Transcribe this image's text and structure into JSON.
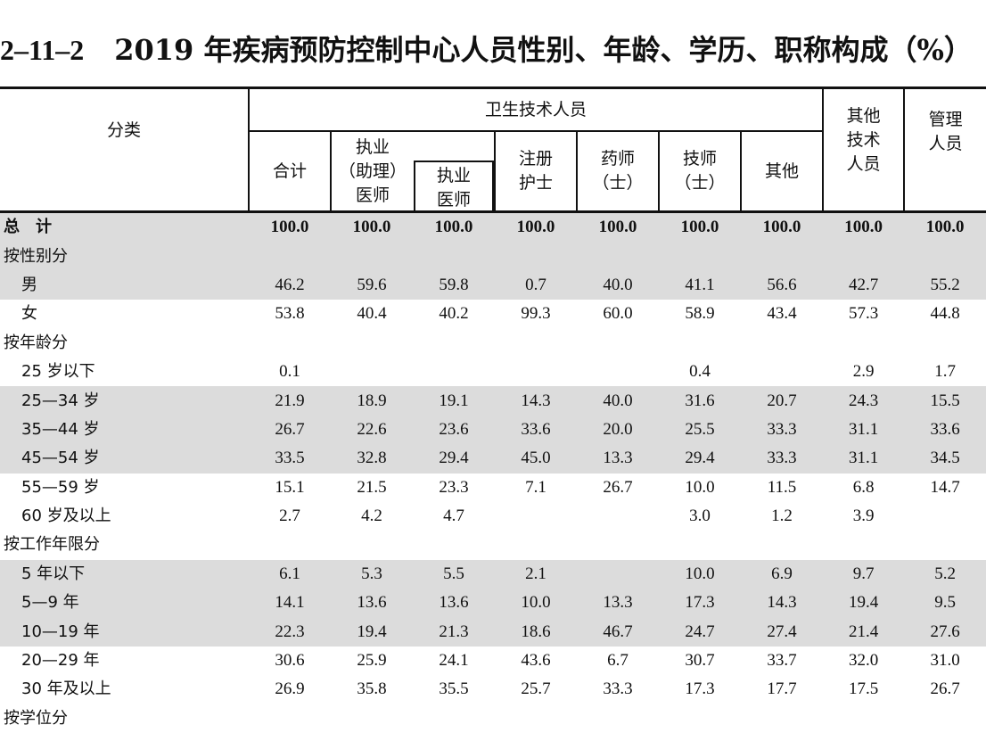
{
  "title": {
    "number": "2–11–2",
    "text": "2019 年疾病预防控制中心人员性别、年龄、学历、职称构成（%）"
  },
  "header": {
    "category": "分类",
    "health_tech": "卫生技术人员",
    "total": "合计",
    "licensed_assistant_l1": "执业",
    "licensed_assistant_l2": "（助理）",
    "licensed_assistant_l3": "医师",
    "licensed_l1": "执业",
    "licensed_l2": "医师",
    "nurse_l1": "注册",
    "nurse_l2": "护士",
    "pharmacist_l1": "药师",
    "pharmacist_l2": "（士）",
    "technician_l1": "技师",
    "technician_l2": "（士）",
    "other": "其他",
    "other_tech_l1": "其他",
    "other_tech_l2": "技术",
    "other_tech_l3": "人员",
    "management_l1": "管理",
    "management_l2": "人员"
  },
  "rows": [
    {
      "label": "总　计",
      "values": [
        "100.0",
        "100.0",
        "100.0",
        "100.0",
        "100.0",
        "100.0",
        "100.0",
        "100.0",
        "100.0"
      ]
    },
    {
      "label": "按性别分",
      "values": [
        "",
        "",
        "",
        "",
        "",
        "",
        "",
        "",
        ""
      ]
    },
    {
      "label": "男",
      "values": [
        "46.2",
        "59.6",
        "59.8",
        "0.7",
        "40.0",
        "41.1",
        "56.6",
        "42.7",
        "55.2"
      ]
    },
    {
      "label": "女",
      "values": [
        "53.8",
        "40.4",
        "40.2",
        "99.3",
        "60.0",
        "58.9",
        "43.4",
        "57.3",
        "44.8"
      ]
    },
    {
      "label": "按年龄分",
      "values": [
        "",
        "",
        "",
        "",
        "",
        "",
        "",
        "",
        ""
      ]
    },
    {
      "label": "25 岁以下",
      "values": [
        "0.1",
        "",
        "",
        "",
        "",
        "0.4",
        "",
        "2.9",
        "1.7"
      ]
    },
    {
      "label": "25—34 岁",
      "values": [
        "21.9",
        "18.9",
        "19.1",
        "14.3",
        "40.0",
        "31.6",
        "20.7",
        "24.3",
        "15.5"
      ]
    },
    {
      "label": "35—44 岁",
      "values": [
        "26.7",
        "22.6",
        "23.6",
        "33.6",
        "20.0",
        "25.5",
        "33.3",
        "31.1",
        "33.6"
      ]
    },
    {
      "label": "45—54 岁",
      "values": [
        "33.5",
        "32.8",
        "29.4",
        "45.0",
        "13.3",
        "29.4",
        "33.3",
        "31.1",
        "34.5"
      ]
    },
    {
      "label": "55—59 岁",
      "values": [
        "15.1",
        "21.5",
        "23.3",
        "7.1",
        "26.7",
        "10.0",
        "11.5",
        "6.8",
        "14.7"
      ]
    },
    {
      "label": "60 岁及以上",
      "values": [
        "2.7",
        "4.2",
        "4.7",
        "",
        "",
        "3.0",
        "1.2",
        "3.9",
        ""
      ]
    },
    {
      "label": "按工作年限分",
      "values": [
        "",
        "",
        "",
        "",
        "",
        "",
        "",
        "",
        ""
      ]
    },
    {
      "label": "5 年以下",
      "values": [
        "6.1",
        "5.3",
        "5.5",
        "2.1",
        "",
        "10.0",
        "6.9",
        "9.7",
        "5.2"
      ]
    },
    {
      "label": "5—9 年",
      "values": [
        "14.1",
        "13.6",
        "13.6",
        "10.0",
        "13.3",
        "17.3",
        "14.3",
        "19.4",
        "9.5"
      ]
    },
    {
      "label": "10—19 年",
      "values": [
        "22.3",
        "19.4",
        "21.3",
        "18.6",
        "46.7",
        "24.7",
        "27.4",
        "21.4",
        "27.6"
      ]
    },
    {
      "label": "20—29 年",
      "values": [
        "30.6",
        "25.9",
        "24.1",
        "43.6",
        "6.7",
        "30.7",
        "33.7",
        "32.0",
        "31.0"
      ]
    },
    {
      "label": "30 年及以上",
      "values": [
        "26.9",
        "35.8",
        "35.5",
        "25.7",
        "33.3",
        "17.3",
        "17.7",
        "17.5",
        "26.7"
      ]
    },
    {
      "label": "按学位分",
      "values": [
        "",
        "",
        "",
        "",
        "",
        "",
        "",
        "",
        ""
      ]
    }
  ]
}
